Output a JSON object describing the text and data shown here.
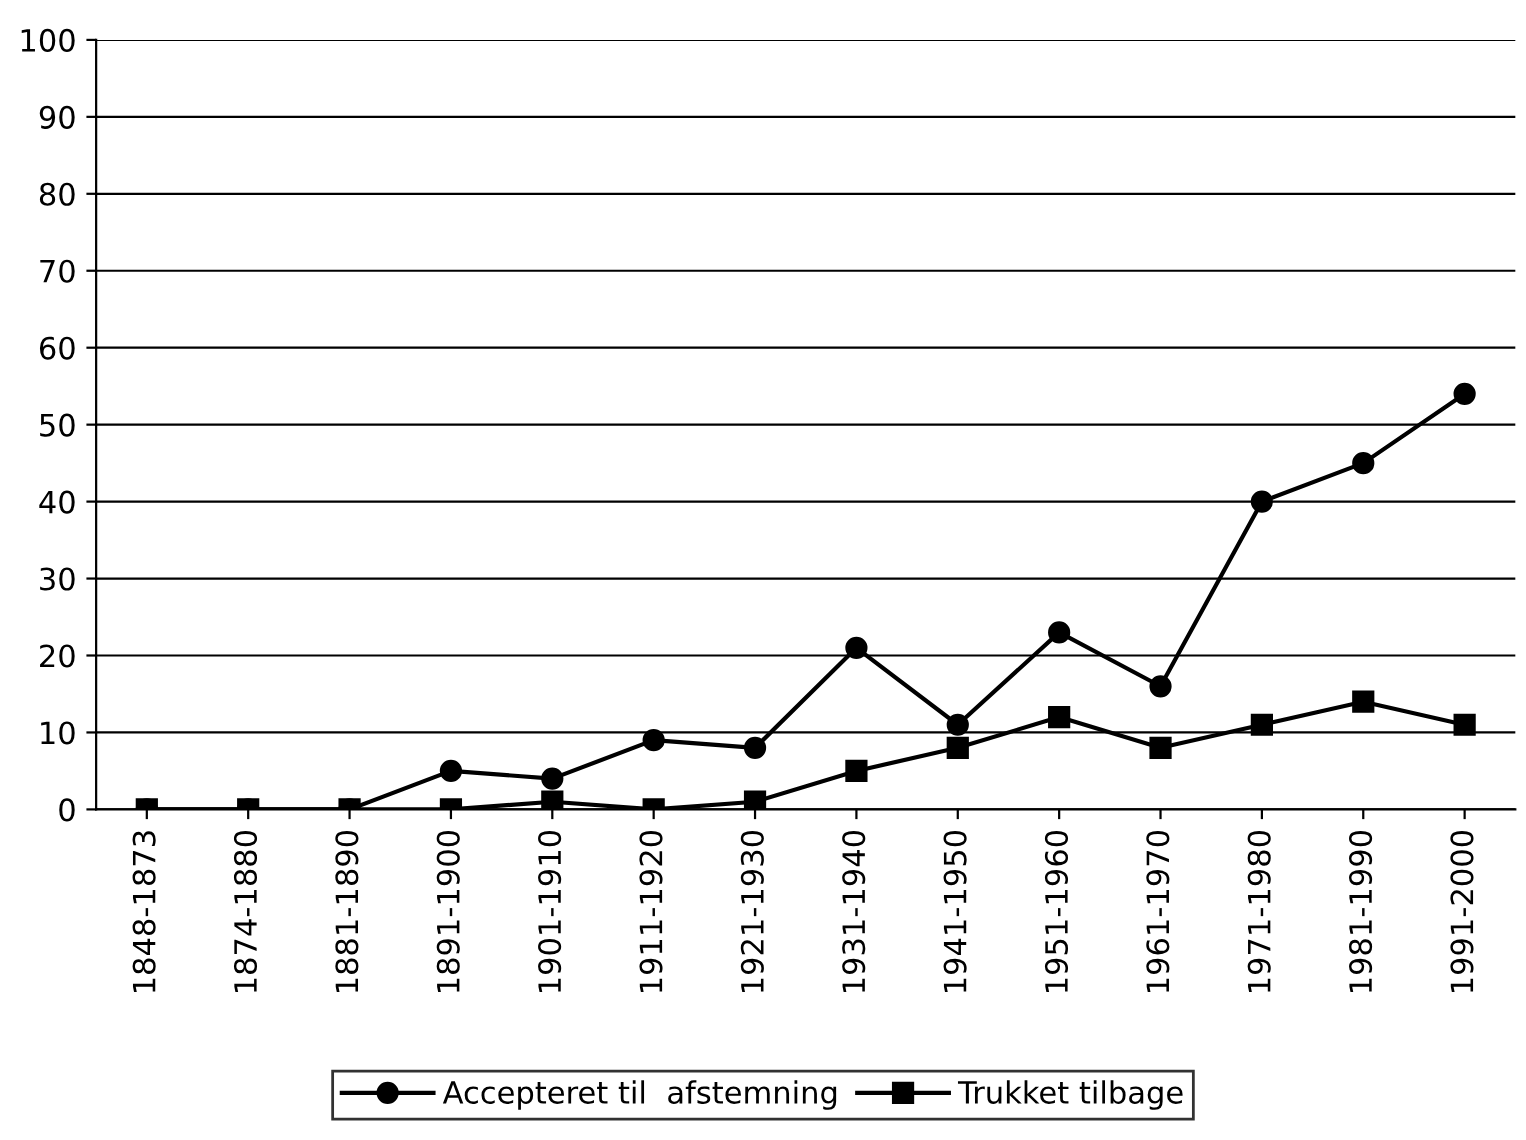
{
  "chart_data": {
    "type": "line",
    "categories": [
      "1848-1873",
      "1874-1880",
      "1881-1890",
      "1891-1900",
      "1901-1910",
      "1911-1920",
      "1921-1930",
      "1931-1940",
      "1941-1950",
      "1951-1960",
      "1961-1970",
      "1971-1980",
      "1981-1990",
      "1991-2000"
    ],
    "series": [
      {
        "name": "Accepteret til  afstemning",
        "color": "#000000",
        "marker": "circle",
        "values": [
          0,
          0,
          0,
          5,
          4,
          9,
          8,
          21,
          11,
          23,
          16,
          40,
          45,
          54
        ]
      },
      {
        "name": "Trukket tilbage",
        "color": "#000000",
        "marker": "square",
        "values": [
          0,
          0,
          0,
          0,
          1,
          0,
          1,
          5,
          8,
          12,
          8,
          11,
          14,
          11
        ]
      }
    ],
    "ylim": [
      0,
      100
    ],
    "yticks": [
      0,
      10,
      20,
      30,
      40,
      50,
      60,
      70,
      80,
      90,
      100
    ],
    "grid": "y",
    "legend": "bottom",
    "line_style": "solid"
  }
}
